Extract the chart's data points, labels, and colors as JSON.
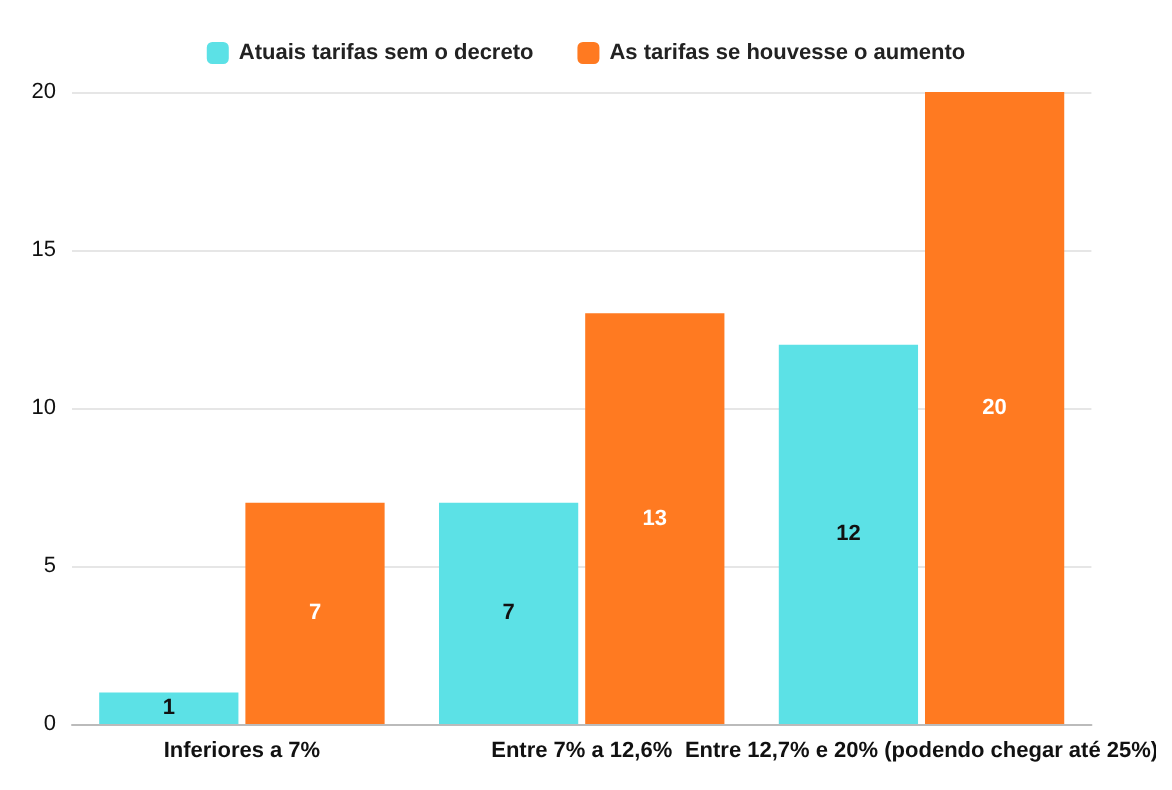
{
  "chart_data": {
    "type": "bar",
    "categories": [
      "Inferiores a 7%",
      "Entre 7% a 12,6%",
      "Entre 12,7% e 20% (podendo chegar até 25%)"
    ],
    "series": [
      {
        "name": "Atuais tarifas sem o decreto",
        "color": "#5ce1e6",
        "values": [
          1,
          7,
          12
        ]
      },
      {
        "name": "As tarifas se houvesse o aumento",
        "color": "#ff7a21",
        "values": [
          7,
          13,
          20
        ]
      }
    ],
    "ylim": [
      0,
      20
    ],
    "yticks": [
      0,
      5,
      10,
      15,
      20
    ],
    "grid": "y",
    "legend": "top",
    "data_labels": true
  }
}
